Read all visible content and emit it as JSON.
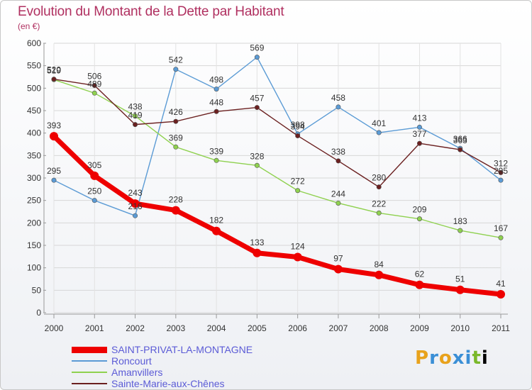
{
  "header": {
    "title": "Evolution du Montant de la Dette par Habitant",
    "unit": "(en €)"
  },
  "logo_text": "Proxiti",
  "chart_data": {
    "type": "line",
    "title": "Evolution du Montant de la Dette par Habitant",
    "ylabel": "(en €)",
    "xlabel": "",
    "ylim": [
      0,
      600
    ],
    "yticks": [
      0,
      50,
      100,
      150,
      200,
      250,
      300,
      350,
      400,
      450,
      500,
      550,
      600
    ],
    "grid": true,
    "legend_position": "bottom-left",
    "categories": [
      "2000",
      "2001",
      "2002",
      "2003",
      "2004",
      "2005",
      "2006",
      "2007",
      "2008",
      "2009",
      "2010",
      "2011"
    ],
    "series": [
      {
        "name": "SAINT-PRIVAT-LA-MONTAGNE",
        "color": "#ee0000",
        "values": [
          393,
          305,
          243,
          228,
          182,
          133,
          124,
          97,
          84,
          62,
          51,
          41
        ]
      },
      {
        "name": "Roncourt",
        "color": "#5b9bd5",
        "values": [
          295,
          250,
          216,
          542,
          498,
          569,
          398,
          458,
          401,
          413,
          366,
          295
        ]
      },
      {
        "name": "Amanvillers",
        "color": "#8fd14f",
        "values": [
          519,
          489,
          438,
          369,
          339,
          328,
          272,
          244,
          222,
          209,
          183,
          167
        ]
      },
      {
        "name": "Sainte-Marie-aux-Chênes",
        "color": "#6b2020",
        "values": [
          520,
          506,
          419,
          426,
          448,
          457,
          394,
          338,
          280,
          377,
          363,
          312
        ]
      }
    ]
  }
}
